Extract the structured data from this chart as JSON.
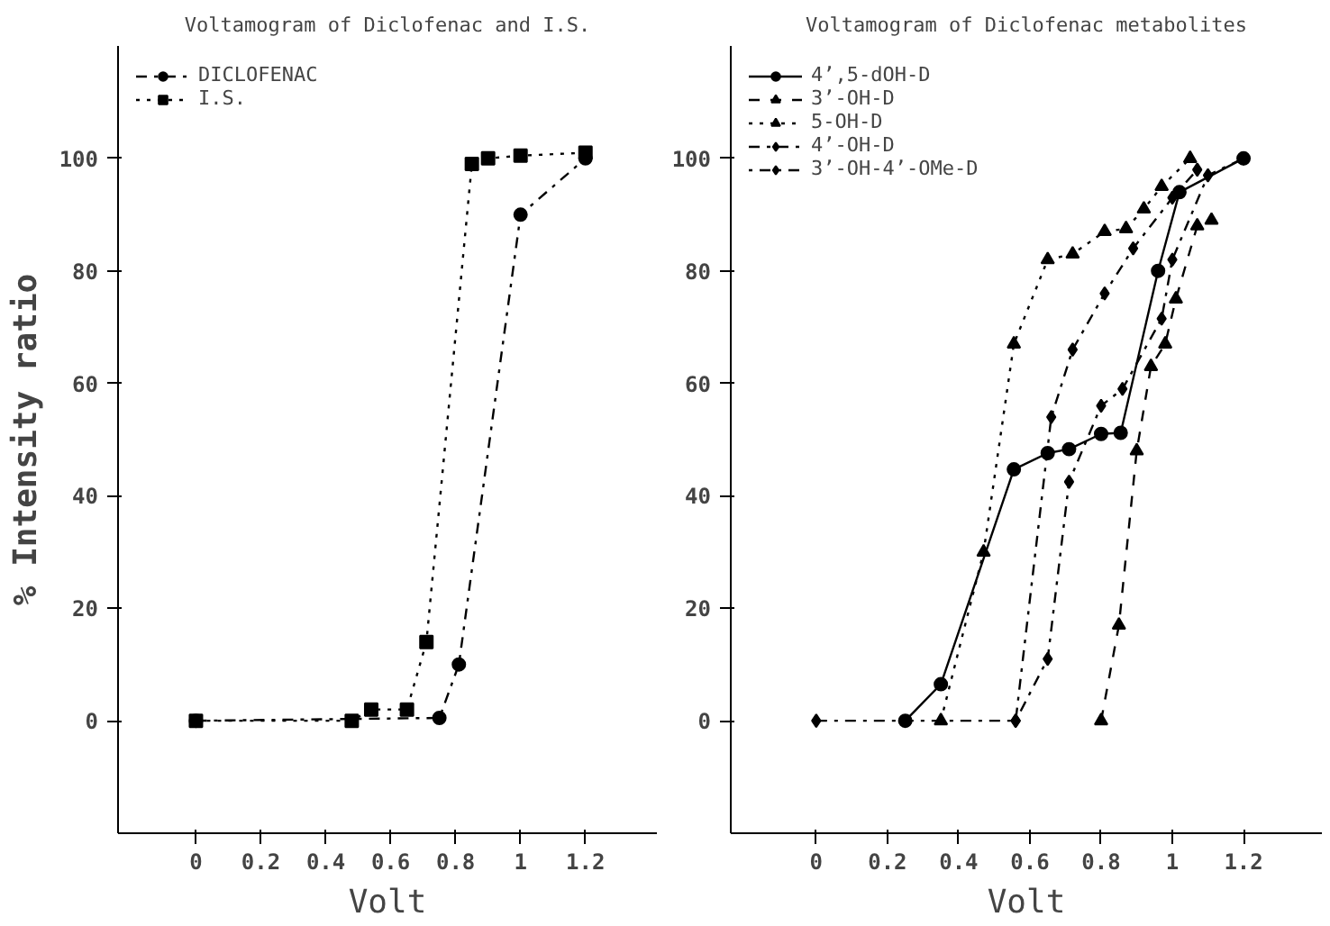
{
  "chart_data": [
    {
      "type": "line",
      "title": "Voltamogram of Diclofenac and I.S.",
      "xlabel": "Volt",
      "ylabel": "% Intensity ratio",
      "xlim": [
        -0.24,
        1.42
      ],
      "ylim": [
        -20,
        120
      ],
      "xticks": [
        0,
        0.2,
        0.4,
        0.6,
        0.8,
        1,
        1.2
      ],
      "yticks": [
        0,
        20,
        40,
        60,
        80,
        100
      ],
      "grid": false,
      "legend": "top left",
      "series": [
        {
          "name": "DICLOFENAC",
          "color": "#000000",
          "marker": "circle",
          "line_style": "dashdot",
          "x": [
            0,
            0.75,
            0.81,
            1.0,
            1.2
          ],
          "values": [
            0,
            0.5,
            10,
            90,
            100
          ]
        },
        {
          "name": "I.S.",
          "color": "#000000",
          "marker": "square",
          "line_style": "dotted",
          "x": [
            0,
            0.48,
            0.54,
            0.65,
            0.71,
            0.85,
            0.9,
            1.0,
            1.2
          ],
          "values": [
            0,
            0,
            2,
            2,
            14,
            99,
            100,
            100.5,
            101
          ]
        }
      ]
    },
    {
      "type": "line",
      "title": "Voltamogram of Diclofenac metabolites",
      "xlabel": "Volt",
      "xlim": [
        -0.24,
        1.42
      ],
      "ylim": [
        -20,
        120
      ],
      "xticks": [
        0,
        0.2,
        0.4,
        0.6,
        0.8,
        1,
        1.2
      ],
      "yticks": [
        0,
        20,
        40,
        60,
        80,
        100
      ],
      "grid": false,
      "legend": "top left",
      "series": [
        {
          "name": "4’,5-dOH-D",
          "color": "#000000",
          "marker": "circle",
          "line_style": "solid",
          "x": [
            0.25,
            0.35,
            0.555,
            0.65,
            0.71,
            0.8,
            0.855,
            0.96,
            1.02,
            1.2
          ],
          "values": [
            0,
            6.5,
            44.7,
            47.6,
            48.3,
            51,
            51.2,
            80,
            94,
            100
          ]
        },
        {
          "name": "3’-OH-D",
          "color": "#000000",
          "marker": "triangle",
          "line_style": "dashed",
          "x": [
            0.8,
            0.85,
            0.9,
            0.94,
            0.98,
            1.01,
            1.07,
            1.11
          ],
          "values": [
            0,
            17,
            48,
            63,
            67,
            75,
            88,
            89
          ]
        },
        {
          "name": "5-OH-D",
          "color": "#000000",
          "marker": "triangle",
          "line_style": "dotted",
          "x": [
            0.35,
            0.47,
            0.555,
            0.65,
            0.72,
            0.81,
            0.87,
            0.92,
            0.97,
            1.05
          ],
          "values": [
            0,
            30,
            67,
            82,
            83,
            87,
            87.5,
            91,
            95,
            100
          ]
        },
        {
          "name": "4’-OH-D",
          "color": "#000000",
          "marker": "diamond",
          "line_style": "dashdot",
          "x": [
            0,
            0.56,
            0.66,
            0.72,
            0.81,
            0.89,
            1.0,
            1.07
          ],
          "values": [
            0,
            0,
            54,
            66,
            76,
            84,
            93,
            98
          ]
        },
        {
          "name": "3’-OH-4’-OMe-D",
          "color": "#000000",
          "marker": "diamond",
          "line_style": "dotdash",
          "x": [
            0.56,
            0.65,
            0.71,
            0.8,
            0.86,
            0.97,
            1.0,
            1.1,
            1.2
          ],
          "values": [
            0,
            11,
            42.5,
            56,
            59,
            71.5,
            82,
            97,
            100
          ]
        }
      ]
    }
  ]
}
